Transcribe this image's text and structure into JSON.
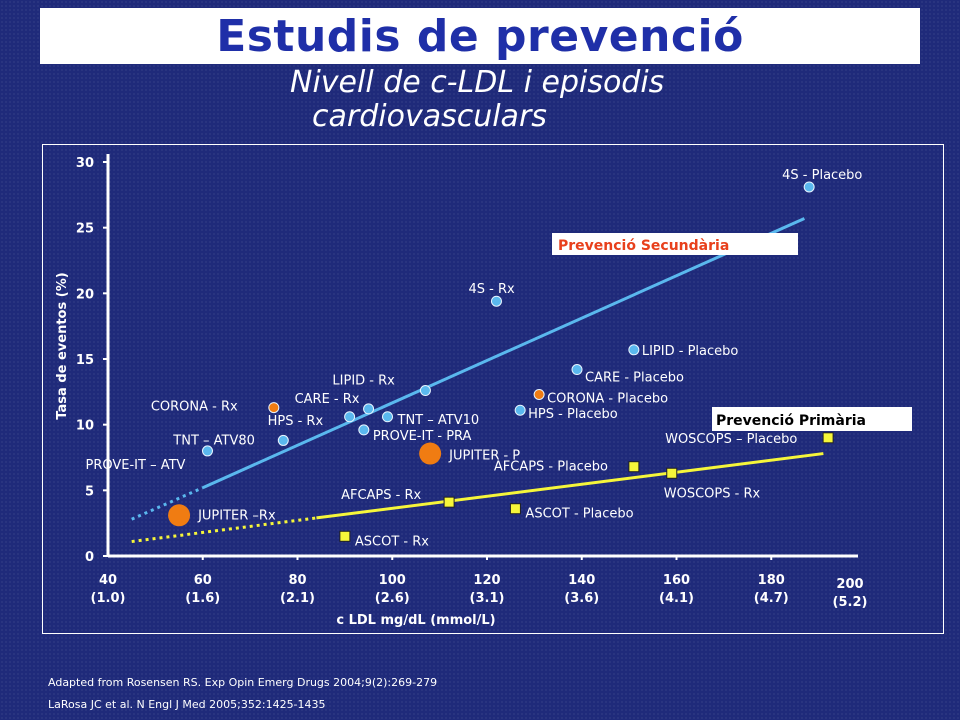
{
  "slide": {
    "title": "Estudis de prevenció",
    "subtitle_line1": "Nivell de c-LDL i episodis",
    "subtitle_line2": "cardiovasculars",
    "footnote_1": "Adapted from Rosensen RS. Exp Opin Emerg Drugs 2004;9(2):269-279",
    "footnote_2": "LaRosa JC et al. N Engl J Med 2005;352:1425-1435"
  },
  "chart_data": {
    "type": "scatter",
    "ylabel": "Tasa de eventos (%)",
    "xlabel": "c LDL mg/dL (mmol/L)",
    "xlim": [
      40,
      200
    ],
    "ylim": [
      0,
      30
    ],
    "yticks": [
      "0",
      "5",
      "10",
      "15",
      "20",
      "25",
      "30"
    ],
    "xticks": [
      {
        "mg": "40",
        "mmol": "(1.0)"
      },
      {
        "mg": "60",
        "mmol": "(1.6)"
      },
      {
        "mg": "80",
        "mmol": "(2.1)"
      },
      {
        "mg": "100",
        "mmol": "(2.6)"
      },
      {
        "mg": "120",
        "mmol": "(3.1)"
      },
      {
        "mg": "140",
        "mmol": "(3.6)"
      },
      {
        "mg": "160",
        "mmol": "(4.1)"
      },
      {
        "mg": "180",
        "mmol": "(4.7)"
      },
      {
        "mg": "200",
        "mmol": "(5.2)"
      }
    ],
    "colors": {
      "secondary": "#5ab8ee",
      "primary": "#f6f63a",
      "orange": "#f07c12",
      "axis": "#ffffff"
    },
    "points": [
      {
        "label": "4S - Placebo",
        "x": 188,
        "y": 28.1,
        "group": "secondary",
        "marker": "circle"
      },
      {
        "label": "4S - Rx",
        "x": 122,
        "y": 19.4,
        "group": "secondary",
        "marker": "circle"
      },
      {
        "label": "LIPID - Placebo",
        "x": 151,
        "y": 15.7,
        "group": "secondary",
        "marker": "circle"
      },
      {
        "label": "CARE - Placebo",
        "x": 139,
        "y": 14.2,
        "group": "secondary",
        "marker": "circle"
      },
      {
        "label": "CORONA - Placebo",
        "x": 131,
        "y": 12.3,
        "group": "orange",
        "marker": "circle"
      },
      {
        "label": "HPS - Placebo",
        "x": 127,
        "y": 11.1,
        "group": "secondary",
        "marker": "circle"
      },
      {
        "label": "LIPID - Rx",
        "x": 107,
        "y": 12.6,
        "group": "secondary",
        "marker": "circle"
      },
      {
        "label": "CARE - Rx",
        "x": 95,
        "y": 11.2,
        "group": "secondary",
        "marker": "circle"
      },
      {
        "label": "TNT – ATV10",
        "x": 99,
        "y": 10.6,
        "group": "secondary",
        "marker": "circle"
      },
      {
        "label": "HPS - Rx",
        "x": 91,
        "y": 10.6,
        "group": "secondary",
        "marker": "circle"
      },
      {
        "label": "PROVE-IT - PRA",
        "x": 94,
        "y": 9.6,
        "group": "secondary",
        "marker": "circle"
      },
      {
        "label": "CORONA - Rx",
        "x": 75,
        "y": 11.3,
        "group": "orange",
        "marker": "circle"
      },
      {
        "label": "TNT – ATV80",
        "x": 77,
        "y": 8.8,
        "group": "secondary",
        "marker": "circle"
      },
      {
        "label": "PROVE-IT – ATV",
        "x": 61,
        "y": 8.0,
        "group": "secondary",
        "marker": "circle"
      },
      {
        "label": "JUPITER - P",
        "x": 108,
        "y": 7.8,
        "group": "orange",
        "marker": "big-circle"
      },
      {
        "label": "JUPITER –Rx",
        "x": 55,
        "y": 3.1,
        "group": "orange",
        "marker": "big-circle"
      },
      {
        "label": "WOSCOPS – Placebo",
        "x": 192,
        "y": 9.0,
        "group": "primary",
        "marker": "square"
      },
      {
        "label": "AFCAPS - Placebo",
        "x": 151,
        "y": 6.8,
        "group": "primary",
        "marker": "square"
      },
      {
        "label": "WOSCOPS - Rx",
        "x": 159,
        "y": 6.3,
        "group": "primary",
        "marker": "square"
      },
      {
        "label": "AFCAPS - Rx",
        "x": 112,
        "y": 4.1,
        "group": "primary",
        "marker": "square"
      },
      {
        "label": "ASCOT - Placebo",
        "x": 126,
        "y": 3.6,
        "group": "primary",
        "marker": "square"
      },
      {
        "label": "ASCOT - Rx",
        "x": 90,
        "y": 1.5,
        "group": "primary",
        "marker": "square"
      }
    ],
    "trend_lines": [
      {
        "label": "Prevenció Secundària",
        "group": "secondary",
        "solid": [
          [
            60,
            5.2
          ],
          [
            187,
            25.7
          ]
        ],
        "dotted": [
          [
            45,
            2.8
          ],
          [
            60,
            5.2
          ]
        ]
      },
      {
        "label": "Prevenció Primària",
        "group": "primary",
        "solid": [
          [
            84,
            2.9
          ],
          [
            191,
            7.8
          ]
        ],
        "dotted": [
          [
            45,
            1.1
          ],
          [
            84,
            2.9
          ]
        ]
      }
    ]
  }
}
